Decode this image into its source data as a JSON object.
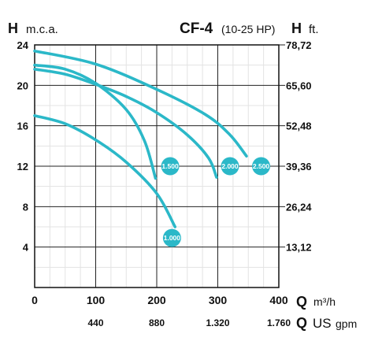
{
  "chart_data": {
    "type": "line",
    "title": "CF-4",
    "subtitle": "(10-25 HP)",
    "ylabel_left": {
      "symbol": "H",
      "unit": "m.c.a."
    },
    "ylabel_right": {
      "symbol": "H",
      "unit": "ft."
    },
    "xlabel": {
      "symbol": "Q",
      "unit": "m³/h"
    },
    "xlabel2": {
      "symbol": "Q",
      "unit_main": "US",
      "unit_sub": "gpm"
    },
    "x_ticks": [
      0,
      100,
      200,
      300,
      400
    ],
    "x2_ticks": [
      "440",
      "880",
      "1.320",
      "1.760"
    ],
    "y_ticks_left": [
      4,
      8,
      12,
      16,
      20,
      24
    ],
    "y_ticks_right": [
      "13,12",
      "26,24",
      "39,36",
      "52,48",
      "65,60",
      "78,72"
    ],
    "xlim": [
      0,
      400
    ],
    "ylim": [
      0,
      24
    ],
    "grid": true,
    "line_color": "#2bb8c8",
    "series": [
      {
        "name": "1.000",
        "x": [
          0,
          50,
          100,
          150,
          200,
          230
        ],
        "y": [
          17,
          16.2,
          14.6,
          12.4,
          9.3,
          6
        ]
      },
      {
        "name": "1.500",
        "x": [
          0,
          50,
          100,
          150,
          180,
          198
        ],
        "y": [
          22,
          21.6,
          20.2,
          17.6,
          14.5,
          10.8
        ]
      },
      {
        "name": "2.000",
        "x": [
          0,
          50,
          100,
          150,
          200,
          250,
          285,
          298
        ],
        "y": [
          21.6,
          21.1,
          20.1,
          18.9,
          17.3,
          15.1,
          12.8,
          10.9
        ]
      },
      {
        "name": "2.500",
        "x": [
          0,
          100,
          200,
          280,
          320,
          347
        ],
        "y": [
          23.4,
          22.1,
          19.6,
          17.1,
          15.1,
          13
        ]
      }
    ],
    "badges": [
      {
        "label": "1.000",
        "x": 225,
        "y": 4.9
      },
      {
        "label": "1.500",
        "x": 222,
        "y": 12
      },
      {
        "label": "2.000",
        "x": 320,
        "y": 12
      },
      {
        "label": "2.500",
        "x": 371,
        "y": 12
      }
    ]
  }
}
